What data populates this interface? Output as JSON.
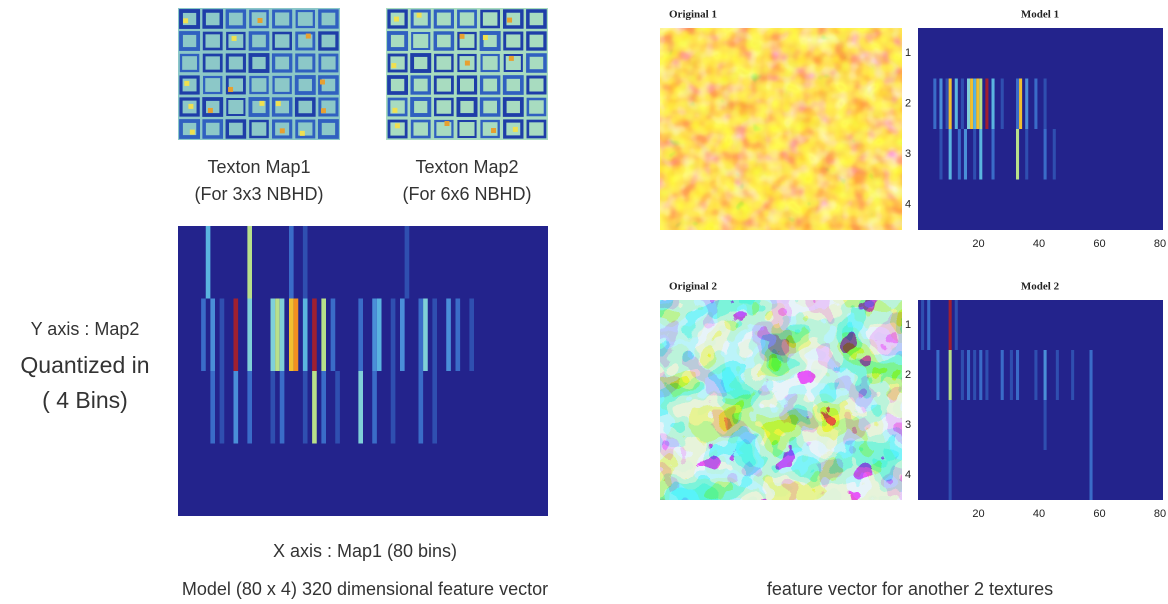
{
  "left": {
    "texton_maps": [
      {
        "label": "Texton Map1",
        "sublabel": "(For 3x3 NBHD)"
      },
      {
        "label": "Texton Map2",
        "sublabel": "(For 6x6 NBHD)"
      }
    ],
    "y_axis_label": [
      "Y axis : Map2",
      "Quantized in",
      "( 4 Bins)"
    ],
    "x_axis_label": "X axis : Map1 (80 bins)",
    "caption": "Model (80 x 4) 320 dimensional feature vector"
  },
  "right": {
    "panels": [
      {
        "original_title": "Original 1",
        "model_title": "Model 1"
      },
      {
        "original_title": "Original 2",
        "model_title": "Model 2"
      }
    ],
    "yticks": [
      1,
      2,
      3,
      4
    ],
    "xticks": [
      20,
      40,
      60,
      80
    ],
    "caption": "feature vector for another 2 textures"
  }
}
